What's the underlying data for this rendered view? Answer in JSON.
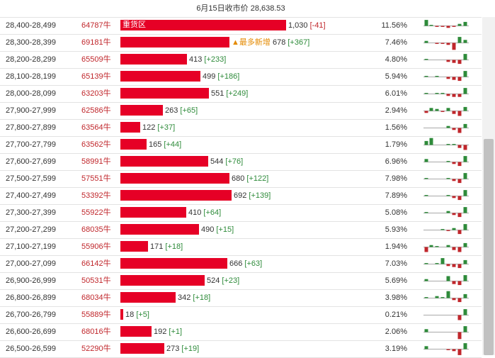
{
  "header": {
    "title": "6月15日收市价 28,638.53"
  },
  "colors": {
    "bar": "#e60026",
    "strike": "#c0262b",
    "positive": "#2e8b3a",
    "negative": "#c0262b",
    "flag": "#e48a00"
  },
  "rows": [
    {
      "range": "28,400-28,499",
      "strike": "64787牛",
      "oi": "1,030",
      "chg": "[-41]",
      "chg_sign": "neg",
      "pct": "11.56%",
      "bar_label": "重货区",
      "flag": "",
      "spark": [
        6,
        1,
        -1,
        -1,
        -2,
        -1,
        2,
        4
      ]
    },
    {
      "range": "28,300-28,399",
      "strike": "69181牛",
      "oi": "678",
      "chg": "[+367]",
      "chg_sign": "pos",
      "pct": "7.46%",
      "bar_label": "",
      "flag": "▲最多新增",
      "spark": [
        2,
        0,
        -1,
        -1,
        -2,
        -7,
        6,
        3
      ]
    },
    {
      "range": "28,200-28,299",
      "strike": "65509牛",
      "oi": "413",
      "chg": "[+233]",
      "chg_sign": "pos",
      "pct": "4.80%",
      "bar_label": "",
      "flag": "",
      "spark": [
        1,
        0,
        0,
        0,
        -2,
        -3,
        -4,
        6
      ]
    },
    {
      "range": "28,100-28,199",
      "strike": "65139牛",
      "oi": "499",
      "chg": "[+186]",
      "chg_sign": "pos",
      "pct": "5.94%",
      "bar_label": "",
      "flag": "",
      "spark": [
        1,
        0,
        1,
        0,
        -2,
        -3,
        -4,
        6
      ]
    },
    {
      "range": "28,000-28,099",
      "strike": "63203牛",
      "oi": "551",
      "chg": "[+249]",
      "chg_sign": "pos",
      "pct": "6.01%",
      "bar_label": "",
      "flag": "",
      "spark": [
        1,
        0,
        1,
        1,
        -2,
        -3,
        -3,
        6
      ]
    },
    {
      "range": "27,900-27,999",
      "strike": "62586牛",
      "oi": "263",
      "chg": "[+65]",
      "chg_sign": "pos",
      "pct": "2.94%",
      "bar_label": "",
      "flag": "",
      "spark": [
        -2,
        3,
        2,
        -1,
        3,
        -3,
        -5,
        4
      ]
    },
    {
      "range": "27,800-27,899",
      "strike": "63564牛",
      "oi": "122",
      "chg": "[+37]",
      "chg_sign": "pos",
      "pct": "1.56%",
      "bar_label": "",
      "flag": "",
      "spark": [
        0,
        0,
        0,
        0,
        2,
        -2,
        -5,
        4
      ]
    },
    {
      "range": "27,700-27,799",
      "strike": "63562牛",
      "oi": "165",
      "chg": "[+44]",
      "chg_sign": "pos",
      "pct": "1.79%",
      "bar_label": "",
      "flag": "",
      "spark": [
        4,
        7,
        0,
        0,
        1,
        1,
        -3,
        -5
      ]
    },
    {
      "range": "27,600-27,699",
      "strike": "58991牛",
      "oi": "544",
      "chg": "[+76]",
      "chg_sign": "pos",
      "pct": "6.96%",
      "bar_label": "",
      "flag": "",
      "spark": [
        3,
        0,
        0,
        0,
        1,
        -2,
        -4,
        6
      ]
    },
    {
      "range": "27,500-27,599",
      "strike": "57551牛",
      "oi": "680",
      "chg": "[+122]",
      "chg_sign": "pos",
      "pct": "7.98%",
      "bar_label": "",
      "flag": "",
      "spark": [
        1,
        0,
        0,
        0,
        1,
        -2,
        -4,
        6
      ]
    },
    {
      "range": "27,400-27,499",
      "strike": "53392牛",
      "oi": "692",
      "chg": "[+139]",
      "chg_sign": "pos",
      "pct": "7.89%",
      "bar_label": "",
      "flag": "",
      "spark": [
        1,
        0,
        0,
        0,
        1,
        -2,
        -4,
        6
      ]
    },
    {
      "range": "27,300-27,399",
      "strike": "55922牛",
      "oi": "410",
      "chg": "[+64]",
      "chg_sign": "pos",
      "pct": "5.08%",
      "bar_label": "",
      "flag": "",
      "spark": [
        1,
        0,
        0,
        0,
        2,
        -2,
        -4,
        6
      ]
    },
    {
      "range": "27,200-27,299",
      "strike": "68035牛",
      "oi": "490",
      "chg": "[+15]",
      "chg_sign": "pos",
      "pct": "5.93%",
      "bar_label": "",
      "flag": "",
      "spark": [
        0,
        0,
        0,
        1,
        -1,
        2,
        -4,
        6
      ]
    },
    {
      "range": "27,100-27,199",
      "strike": "55906牛",
      "oi": "171",
      "chg": "[+18]",
      "chg_sign": "pos",
      "pct": "1.94%",
      "bar_label": "",
      "flag": "",
      "spark": [
        -5,
        2,
        1,
        0,
        2,
        -3,
        -5,
        4
      ]
    },
    {
      "range": "27,000-27,099",
      "strike": "66142牛",
      "oi": "666",
      "chg": "[+63]",
      "chg_sign": "pos",
      "pct": "7.03%",
      "bar_label": "",
      "flag": "",
      "spark": [
        1,
        0,
        1,
        6,
        -2,
        -3,
        -4,
        4
      ]
    },
    {
      "range": "26,900-26,999",
      "strike": "50531牛",
      "oi": "524",
      "chg": "[+23]",
      "chg_sign": "pos",
      "pct": "5.69%",
      "bar_label": "",
      "flag": "",
      "spark": [
        2,
        0,
        0,
        0,
        5,
        -3,
        -4,
        6
      ]
    },
    {
      "range": "26,800-26,899",
      "strike": "68034牛",
      "oi": "342",
      "chg": "[+18]",
      "chg_sign": "pos",
      "pct": "3.98%",
      "bar_label": "",
      "flag": "",
      "spark": [
        1,
        0,
        2,
        1,
        7,
        -2,
        -4,
        4
      ]
    },
    {
      "range": "26,700-26,799",
      "strike": "55889牛",
      "oi": "18",
      "chg": "[+5]",
      "chg_sign": "pos",
      "pct": "0.21%",
      "bar_label": "",
      "flag": "",
      "spark": [
        0,
        0,
        0,
        0,
        0,
        0,
        -5,
        6
      ]
    },
    {
      "range": "26,600-26,699",
      "strike": "68016牛",
      "oi": "192",
      "chg": "[+1]",
      "chg_sign": "pos",
      "pct": "2.06%",
      "bar_label": "",
      "flag": "",
      "spark": [
        3,
        0,
        0,
        0,
        0,
        0,
        -7,
        6
      ]
    },
    {
      "range": "26,500-26,599",
      "strike": "52290牛",
      "oi": "273",
      "chg": "[+19]",
      "chg_sign": "pos",
      "pct": "3.19%",
      "bar_label": "",
      "flag": "",
      "spark": [
        3,
        0,
        0,
        0,
        -1,
        -2,
        -6,
        6
      ]
    }
  ]
}
